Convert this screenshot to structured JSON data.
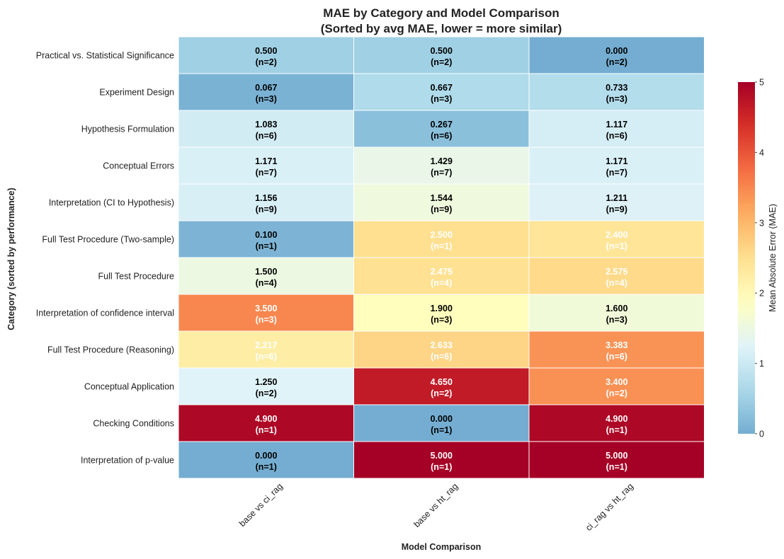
{
  "chart_data": {
    "type": "heatmap",
    "title": "MAE by Category and Model Comparison",
    "subtitle": "(Sorted by avg MAE, lower = more similar)",
    "xlabel": "Model Comparison",
    "ylabel": "Category (sorted by performance)",
    "columns": [
      "base vs ci_rag",
      "base vs ht_rag",
      "ci_rag vs ht_rag"
    ],
    "rows": [
      {
        "category": "Practical vs. Statistical Significance",
        "values": [
          0.5,
          0.5,
          0.0
        ],
        "labels": [
          "0.500",
          "0.500",
          "0.000"
        ],
        "counts": [
          "(n=2)",
          "(n=2)",
          "(n=2)"
        ]
      },
      {
        "category": "Experiment Design",
        "values": [
          0.067,
          0.667,
          0.733
        ],
        "labels": [
          "0.067",
          "0.667",
          "0.733"
        ],
        "counts": [
          "(n=3)",
          "(n=3)",
          "(n=3)"
        ]
      },
      {
        "category": "Hypothesis Formulation",
        "values": [
          1.083,
          0.267,
          1.117
        ],
        "labels": [
          "1.083",
          "0.267",
          "1.117"
        ],
        "counts": [
          "(n=6)",
          "(n=6)",
          "(n=6)"
        ]
      },
      {
        "category": "Conceptual Errors",
        "values": [
          1.171,
          1.429,
          1.171
        ],
        "labels": [
          "1.171",
          "1.429",
          "1.171"
        ],
        "counts": [
          "(n=7)",
          "(n=7)",
          "(n=7)"
        ]
      },
      {
        "category": "Interpretation (CI to Hypothesis)",
        "values": [
          1.156,
          1.544,
          1.211
        ],
        "labels": [
          "1.156",
          "1.544",
          "1.211"
        ],
        "counts": [
          "(n=9)",
          "(n=9)",
          "(n=9)"
        ]
      },
      {
        "category": "Full Test Procedure (Two-sample)",
        "values": [
          0.1,
          2.5,
          2.4
        ],
        "labels": [
          "0.100",
          "2.500",
          "2.400"
        ],
        "counts": [
          "(n=1)",
          "(n=1)",
          "(n=1)"
        ]
      },
      {
        "category": "Full Test Procedure",
        "values": [
          1.5,
          2.475,
          2.575
        ],
        "labels": [
          "1.500",
          "2.475",
          "2.575"
        ],
        "counts": [
          "(n=4)",
          "(n=4)",
          "(n=4)"
        ]
      },
      {
        "category": "Interpretation of confidence interval",
        "values": [
          3.5,
          1.9,
          1.6
        ],
        "labels": [
          "3.500",
          "1.900",
          "1.600"
        ],
        "counts": [
          "(n=3)",
          "(n=3)",
          "(n=3)"
        ]
      },
      {
        "category": "Full Test Procedure (Reasoning)",
        "values": [
          2.217,
          2.633,
          3.383
        ],
        "labels": [
          "2.217",
          "2.633",
          "3.383"
        ],
        "counts": [
          "(n=6)",
          "(n=6)",
          "(n=6)"
        ]
      },
      {
        "category": "Conceptual Application",
        "values": [
          1.25,
          4.65,
          3.4
        ],
        "labels": [
          "1.250",
          "4.650",
          "3.400"
        ],
        "counts": [
          "(n=2)",
          "(n=2)",
          "(n=2)"
        ]
      },
      {
        "category": "Checking Conditions",
        "values": [
          4.9,
          0.0,
          4.9
        ],
        "labels": [
          "4.900",
          "0.000",
          "4.900"
        ],
        "counts": [
          "(n=1)",
          "(n=1)",
          "(n=1)"
        ]
      },
      {
        "category": "Interpretation of p-value",
        "values": [
          0.0,
          5.0,
          5.0
        ],
        "labels": [
          "0.000",
          "5.000",
          "5.000"
        ],
        "counts": [
          "(n=1)",
          "(n=1)",
          "(n=1)"
        ]
      }
    ],
    "colorbar": {
      "label": "Mean Absolute Error (MAE)",
      "range": [
        0,
        5
      ],
      "ticks": [
        "0",
        "1",
        "2",
        "3",
        "4",
        "5"
      ],
      "colormap": "RdYlBu_r",
      "dark_text_threshold": 2.0,
      "dark_text_color": "#000000",
      "light_text_color": "#ffffff"
    },
    "grid": false
  }
}
